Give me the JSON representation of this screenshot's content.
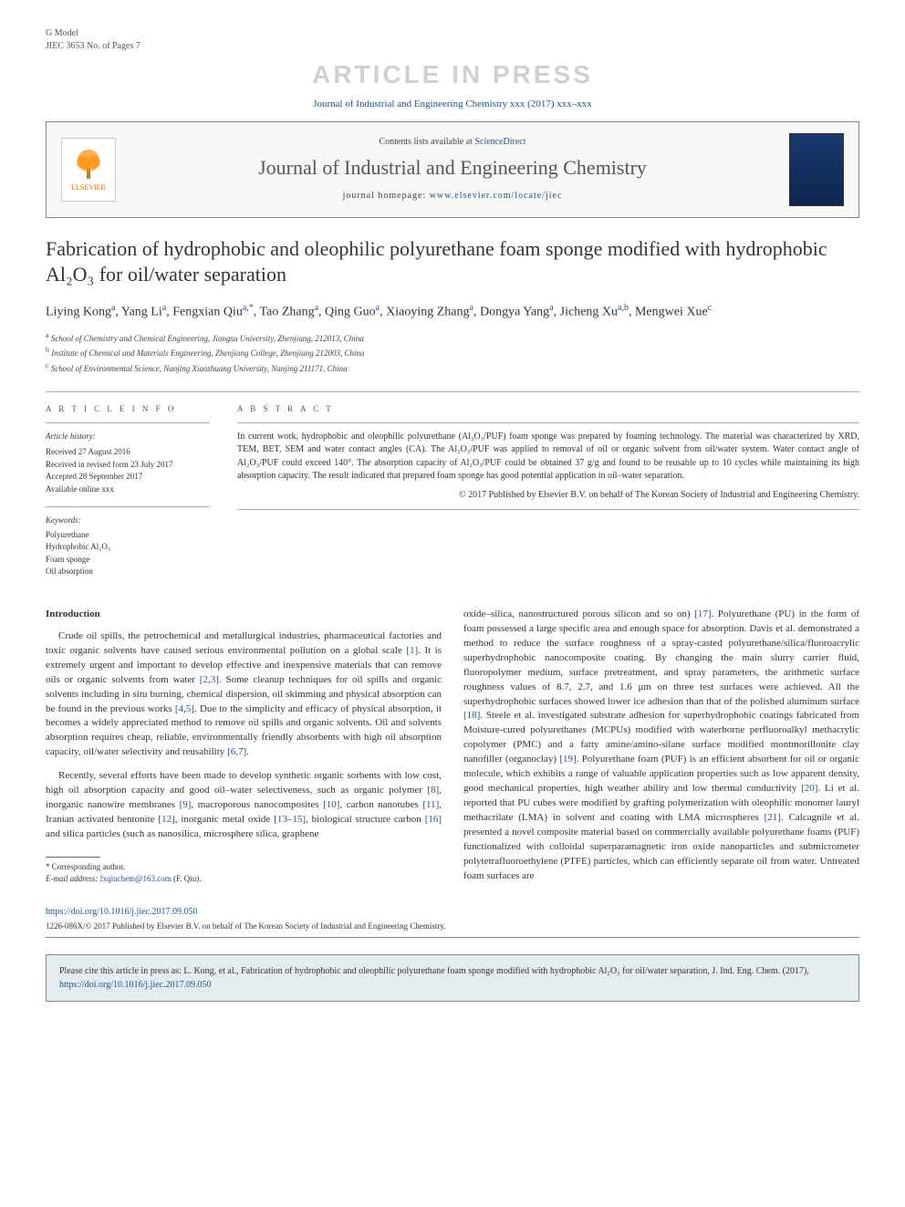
{
  "header": {
    "gmodel": "G Model",
    "ref": "JIEC 3653 No. of Pages 7",
    "watermark": "ARTICLE IN PRESS",
    "citation_top": "Journal of Industrial and Engineering Chemistry xxx (2017) xxx–xxx"
  },
  "masthead": {
    "contents_prefix": "Contents lists available at ",
    "contents_link": "ScienceDirect",
    "journal_name": "Journal of Industrial and Engineering Chemistry",
    "homepage_prefix": "journal homepage: ",
    "homepage_url": "www.elsevier.com/locate/jiec",
    "publisher": "ELSEVIER"
  },
  "title": "Fabrication of hydrophobic and oleophilic polyurethane foam sponge modified with hydrophobic Al₂O₃ for oil/water separation",
  "authors_html": "Liying Kong<sup>a</sup>, Yang Li<sup>a</sup>, Fengxian Qiu<sup>a,*</sup>, Tao Zhang<sup>a</sup>, Qing Guo<sup>a</sup>, Xiaoying Zhang<sup>a</sup>, Dongya Yang<sup>a</sup>, Jicheng Xu<sup>a,b</sup>, Mengwei Xue<sup>c</sup>",
  "affiliations": {
    "a": "School of Chemistry and Chemical Engineering, Jiangsu University, Zhenjiang, 212013, China",
    "b": "Institute of Chemical and Materials Engineering, Zhenjiang College, Zhenjiang 212003, China",
    "c": "School of Environmental Science, Nanjing Xiaozhuang University, Nanjing 211171, China"
  },
  "info": {
    "heading": "A R T I C L E  I N F O",
    "history_label": "Article history:",
    "received": "Received 27 August 2016",
    "revised": "Received in revised form 23 July 2017",
    "accepted": "Accepted 28 September 2017",
    "online": "Available online xxx",
    "keywords_label": "Keywords:",
    "keywords": [
      "Polyurethane",
      "Hydrophobic Al₂O₃",
      "Foam sponge",
      "Oil absorption"
    ]
  },
  "abstract": {
    "heading": "A B S T R A C T",
    "text": "In current work, hydrophobic and oleophilic polyurethane (Al₂O₃/PUF) foam sponge was prepared by foaming technology. The material was characterized by XRD, TEM, BET, SEM and water contact angles (CA). The Al₂O₃/PUF was applied to removal of oil or organic solvent from oil/water system. Water contact angle of Al₂O₃/PUF could exceed 140°. The absorption capacity of Al₂O₃/PUF could be obtained 37 g/g and found to be reusable up to 10 cycles while maintaining its high absorption capacity. The result indicated that prepared foam sponge has good potential application in oil–water separation.",
    "copyright": "© 2017 Published by Elsevier B.V. on behalf of The Korean Society of Industrial and Engineering Chemistry."
  },
  "body": {
    "intro_heading": "Introduction",
    "p1": "Crude oil spills, the petrochemical and metallurgical industries, pharmaceutical factories and toxic organic solvents have caused serious environmental pollution on a global scale [1]. It is extremely urgent and important to develop effective and inexpensive materials that can remove oils or organic solvents from water [2,3]. Some cleanup techniques for oil spills and organic solvents including in situ burning, chemical dispersion, oil skimming and physical absorption can be found in the previous works [4,5]. Due to the simplicity and efficacy of physical absorption, it becomes a widely appreciated method to remove oil spills and organic solvents. Oil and solvents absorption requires cheap, reliable, environmentally friendly absorbents with high oil absorption capacity, oil/water selectivity and reusability [6,7].",
    "p2": "Recently, several efforts have been made to develop synthetic organic sorbents with low cost, high oil absorption capacity and good oil–water selectiveness, such as organic polymer [8], inorganic nanowire membranes [9], macroporous nanocomposites [10], carbon nanotubes [11], Iranian activated bentonite [12], inorganic metal oxide [13–15], biological structure carbon [16] and silica particles (such as nanosilica, microsphere silica, graphene",
    "p3": "oxide–silica, nanostructured porous silicon and so on) [17]. Polyurethane (PU) in the form of foam possessed a large specific area and enough space for absorption. Davis et al. demonstrated a method to reduce the surface roughness of a spray-casted polyurethane/silica/fluoroacrylic superhydrophobic nanocomposite coating. By changing the main slurry carrier fluid, fluoropolymer medium, surface pretreatment, and spray parameters, the arithmetic surface roughness values of 8.7, 2.7, and 1.6 μm on three test surfaces were achieved. All the superhydrophobic surfaces showed lower ice adhesion than that of the polished aluminum surface [18]. Steele et al. investigated substrate adhesion for superhydrophobic coatings fabricated from Moisture-cured polyurethanes (MCPUs) modified with waterborne perfluoroalkyl methacrylic copolymer (PMC) and a fatty amine/amino-silane surface modified montmorillonite clay nanofiller (organoclay) [19]. Polyurethane foam (PUF) is an efficient absorbent for oil or organic molecule, which exhibits a range of valuable application properties such as low apparent density, good mechanical properties, high weather ability and low thermal conductivity [20]. Li et al. reported that PU cubes were modified by grafting polymerization with oleophilic monomer lauryl methacrilate (LMA) in solvent and coating with LMA microspheres [21]. Calcagnile et al. presented a novel composite material based on commercially available polyurethane foams (PUF) functionalized with colloidal superparamagnetic iron oxide nanoparticles and submicrometer polytetrafluoroethylene (PTFE) particles, which can efficiently separate oil from water. Untreated foam surfaces are"
  },
  "footnotes": {
    "corresponding": "* Corresponding author.",
    "email_label": "E-mail address: ",
    "email": "fxqiuchem@163.com",
    "email_suffix": " (F. Qiu)."
  },
  "footer": {
    "doi": "https://doi.org/10.1016/j.jiec.2017.09.050",
    "issn_line": "1226-086X/© 2017 Published by Elsevier B.V. on behalf of The Korean Society of Industrial and Engineering Chemistry.",
    "cite_prefix": "Please cite this article in press as: L. Kong, et al., Fabrication of hydrophobic and oleophilic polyurethane foam sponge modified with hydrophobic Al₂O₃ for oil/water separation, J. Ind. Eng. Chem. (2017), ",
    "cite_doi": "https://doi.org/10.1016/j.jiec.2017.09.050"
  },
  "refs": [
    "[1]",
    "[2,3]",
    "[4,5]",
    "[6,7]",
    "[8]",
    "[9]",
    "[10]",
    "[11]",
    "[12]",
    "[13–15]",
    "[16]",
    "[17]",
    "[18]",
    "[19]",
    "[20]",
    "[21]"
  ]
}
